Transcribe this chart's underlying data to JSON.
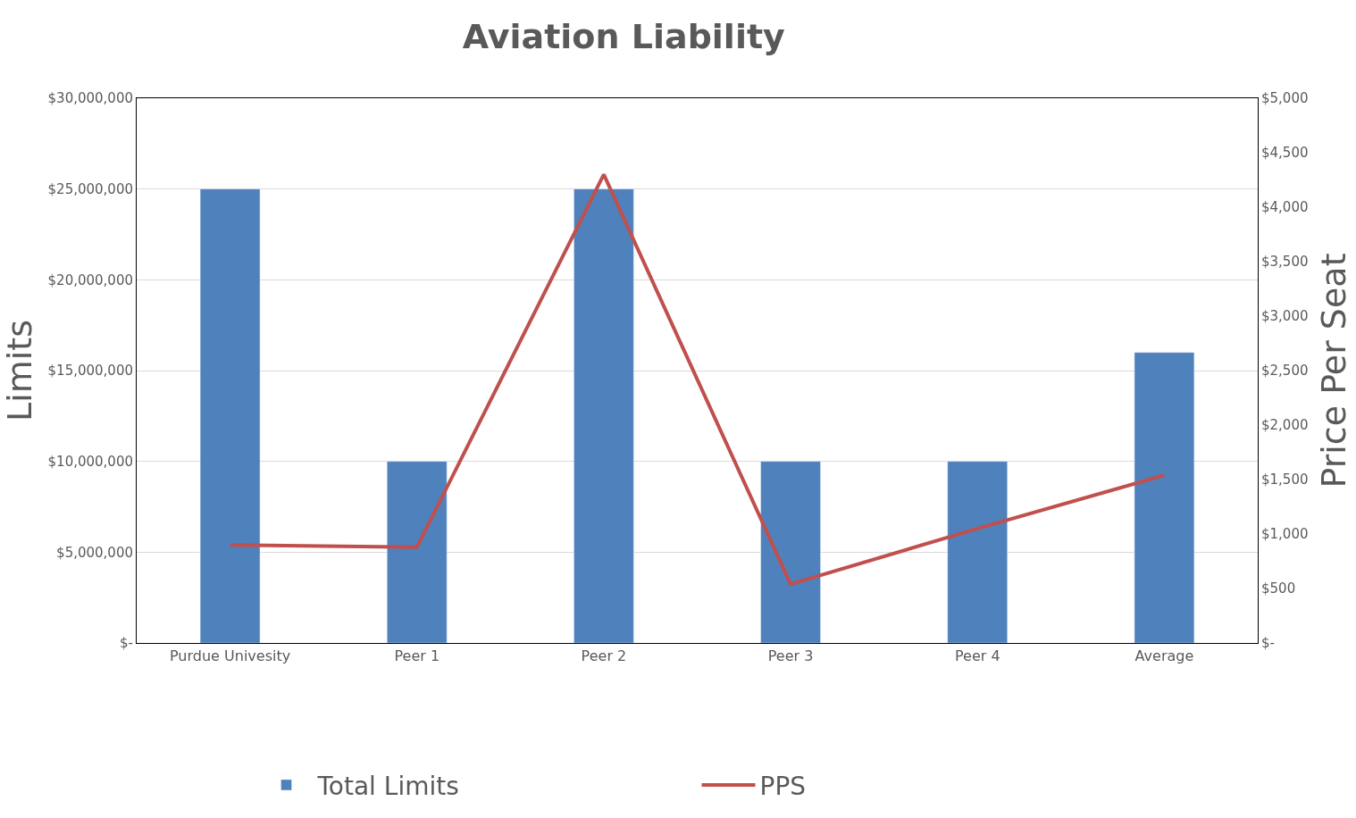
{
  "chart_data": {
    "type": "bar",
    "title": "Aviation Liability",
    "ylabel": "Limits",
    "y2label": "Price Per Seat",
    "categories": [
      "Purdue Univesity",
      "Peer 1",
      "Peer 2",
      "Peer 3",
      "Peer 4",
      "Average"
    ],
    "series": [
      {
        "name": "Total Limits",
        "color": "#4f81bd",
        "values": [
          25000000,
          10000000,
          25000000,
          10000000,
          10000000,
          16000000
        ]
      },
      {
        "name": "PPS",
        "type": "line",
        "axis": "y2",
        "color": "#c0504d",
        "values": [
          900,
          880,
          4300,
          540,
          1050,
          1540
        ]
      }
    ],
    "ylim": [
      0,
      30000000
    ],
    "yticks": [
      {
        "value": 0,
        "label": "$-"
      },
      {
        "value": 5000000,
        "label": "$5,000,000"
      },
      {
        "value": 10000000,
        "label": "$10,000,000"
      },
      {
        "value": 15000000,
        "label": "$15,000,000"
      },
      {
        "value": 20000000,
        "label": "$20,000,000"
      },
      {
        "value": 25000000,
        "label": "$25,000,000"
      },
      {
        "value": 30000000,
        "label": "$30,000,000"
      }
    ],
    "y2lim": [
      0,
      5000
    ],
    "y2ticks": [
      {
        "value": 0,
        "label": "$-"
      },
      {
        "value": 500,
        "label": "$500"
      },
      {
        "value": 1000,
        "label": "$1,000"
      },
      {
        "value": 1500,
        "label": "$1,500"
      },
      {
        "value": 2000,
        "label": "$2,000"
      },
      {
        "value": 2500,
        "label": "$2,500"
      },
      {
        "value": 3000,
        "label": "$3,000"
      },
      {
        "value": 3500,
        "label": "$3,500"
      },
      {
        "value": 4000,
        "label": "$4,000"
      },
      {
        "value": 4500,
        "label": "$4,500"
      },
      {
        "value": 5000,
        "label": "$5,000"
      }
    ],
    "grid": "y",
    "legend": "bottom",
    "marker": "none",
    "line_style": "solid"
  }
}
